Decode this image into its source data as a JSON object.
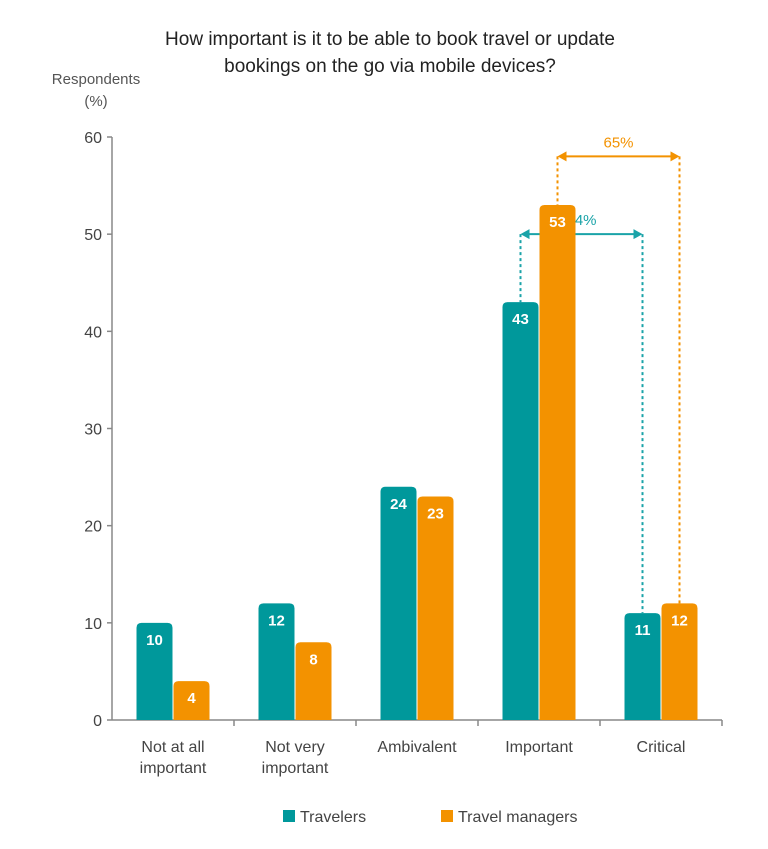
{
  "chart_data": {
    "type": "bar",
    "title": [
      "How important is it to be able to book travel or update",
      "bookings on the go via mobile devices?"
    ],
    "xlabel": "",
    "ylabel": [
      "Respondents",
      "(%)"
    ],
    "ylim": [
      0,
      60
    ],
    "yticks": [
      0,
      10,
      20,
      30,
      40,
      50,
      60
    ],
    "grid": false,
    "categories": [
      [
        "Not at all",
        "important"
      ],
      [
        "Not very",
        "important"
      ],
      [
        "Ambivalent"
      ],
      [
        "Important"
      ],
      [
        "Critical"
      ]
    ],
    "series": [
      {
        "name": "Travelers",
        "color": "#00989b",
        "values": [
          10,
          12,
          24,
          43,
          11
        ]
      },
      {
        "name": "Travel managers",
        "color": "#f39200",
        "values": [
          4,
          8,
          23,
          53,
          12
        ]
      }
    ],
    "annotations": [
      {
        "label": "54%",
        "series": 0,
        "from_category": 3,
        "to_category": 4,
        "level": 50,
        "color": "#1aa3a8"
      },
      {
        "label": "65%",
        "series": 1,
        "from_category": 3,
        "to_category": 4,
        "level": 58,
        "color": "#f39200"
      }
    ],
    "legend_position": "bottom"
  }
}
